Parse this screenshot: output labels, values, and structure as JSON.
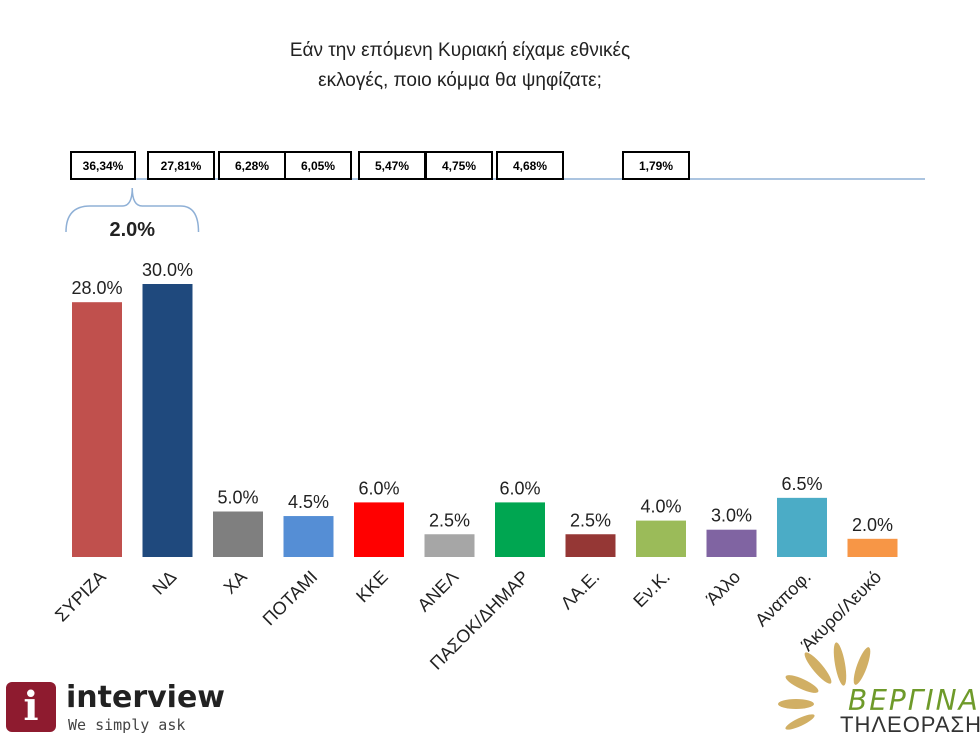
{
  "header": {
    "title_line1": "Εάν την επόμενη Κυριακή είχαμε εθνικές",
    "title_line2": "εκλογές, ποιο κόμμα θα ψηφίζατε;"
  },
  "previous_results": {
    "boxes": [
      "36,34%",
      "27,81%",
      "6,28%",
      "6,05%",
      "5,47%",
      "4,75%",
      "4,68%",
      "1,79%"
    ]
  },
  "gap_annotation": "2.0%",
  "chart_data": {
    "type": "bar",
    "title": "Εάν την επόμενη Κυριακή είχαμε εθνικές εκλογές, ποιο κόμμα θα ψηφίζατε;",
    "categories": [
      "ΣΥΡΙΖΑ",
      "ΝΔ",
      "ΧΑ",
      "ΠΟΤΑΜΙ",
      "ΚΚΕ",
      "ΑΝΕΛ",
      "ΠΑΣΟΚ/ΔΗΜΑΡ",
      "ΛΑ.Ε.",
      "Εν.Κ.",
      "Άλλο",
      "Αναποφ.",
      "Άκυρο/Λευκό"
    ],
    "values": [
      28.0,
      30.0,
      5.0,
      4.5,
      6.0,
      2.5,
      6.0,
      2.5,
      4.0,
      3.0,
      6.5,
      2.0
    ],
    "value_labels": [
      "28.0%",
      "30.0%",
      "5.0%",
      "4.5%",
      "6.0%",
      "2.5%",
      "6.0%",
      "2.5%",
      "4.0%",
      "3.0%",
      "6.5%",
      "2.0%"
    ],
    "colors": [
      "#c0504d",
      "#1f497d",
      "#7f7f7f",
      "#558ed5",
      "#ff0000",
      "#a6a6a6",
      "#00a651",
      "#953735",
      "#9bbb59",
      "#8064a2",
      "#4bacc6",
      "#f79646"
    ],
    "ylim": [
      0,
      32
    ],
    "grid": false,
    "legend": "none"
  },
  "logos": {
    "interview_word": "interview",
    "interview_tag": "We simply ask",
    "interview_mark": "i",
    "vergina_word": "ΒΕΡΓΙΝΑ",
    "vergina_sub": "ΤΗΛΕΟΡΑΣΗ"
  }
}
